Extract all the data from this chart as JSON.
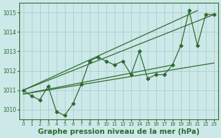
{
  "x": [
    0,
    1,
    2,
    3,
    4,
    5,
    6,
    7,
    8,
    9,
    10,
    11,
    12,
    13,
    14,
    15,
    16,
    17,
    18,
    19,
    20,
    21,
    22,
    23
  ],
  "y": [
    1011.0,
    1010.7,
    1010.5,
    1011.2,
    1009.9,
    1009.7,
    1010.3,
    1011.3,
    1012.5,
    1012.7,
    1012.5,
    1012.3,
    1012.5,
    1011.8,
    1013.0,
    1011.6,
    1011.8,
    1011.8,
    1012.3,
    1013.3,
    1015.1,
    1013.3,
    1014.9,
    1014.9
  ],
  "trend_lines": [
    {
      "x0": 0,
      "y0": 1011.0,
      "x1": 21,
      "y1": 1015.1
    },
    {
      "x0": 0,
      "y0": 1011.0,
      "x1": 23,
      "y1": 1014.9
    },
    {
      "x0": 0,
      "y0": 1010.8,
      "x1": 23,
      "y1": 1012.4
    },
    {
      "x0": 0,
      "y0": 1010.8,
      "x1": 18,
      "y1": 1012.3
    }
  ],
  "line_color": "#2d6a2d",
  "marker": "D",
  "marker_size": 3,
  "bg_color": "#cce8e8",
  "grid_color": "#aacece",
  "ylabel_ticks": [
    1010,
    1011,
    1012,
    1013,
    1014,
    1015
  ],
  "xlabel": "Graphe pression niveau de la mer (hPa)",
  "ylim": [
    1009.5,
    1015.5
  ],
  "xlim": [
    -0.5,
    23.5
  ]
}
